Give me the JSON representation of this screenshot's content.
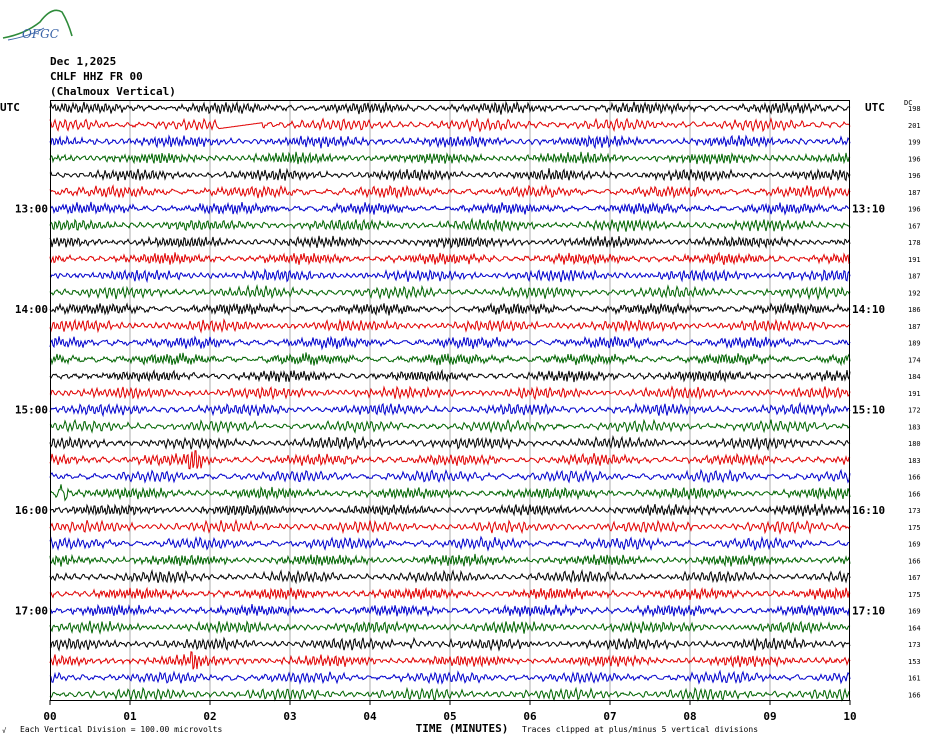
{
  "logo": {
    "text": "OFGC"
  },
  "header": {
    "date": "Dec 1,2025",
    "station": "CHLF HHZ FR 00",
    "location": "(Chalmoux Vertical)"
  },
  "footer": {
    "scale_note": "Each Vertical Division =  100.00 microvolts",
    "clip_note": "Traces clipped at plus/minus 5 vertical divisions",
    "corner_mark": "√"
  },
  "chart_data": {
    "type": "line",
    "title": "",
    "xlabel": "TIME (MINUTES)",
    "left_axis_title": "UTC",
    "right_axis_title": "UTC",
    "dc_label": "DC",
    "x_ticks": [
      "00",
      "01",
      "02",
      "03",
      "04",
      "05",
      "06",
      "07",
      "08",
      "09",
      "10"
    ],
    "xlim": [
      0,
      10
    ],
    "left_time_labels": [
      {
        "row": 6,
        "label": "13:00"
      },
      {
        "row": 12,
        "label": "14:00"
      },
      {
        "row": 18,
        "label": "15:00"
      },
      {
        "row": 24,
        "label": "16:00"
      },
      {
        "row": 30,
        "label": "17:00"
      }
    ],
    "right_time_labels": [
      {
        "row": 6,
        "label": "13:10"
      },
      {
        "row": 12,
        "label": "14:10"
      },
      {
        "row": 18,
        "label": "15:10"
      },
      {
        "row": 24,
        "label": "16:10"
      },
      {
        "row": 30,
        "label": "17:10"
      }
    ],
    "trace_colors": [
      "#000000",
      "#e00000",
      "#0000cc",
      "#006400"
    ],
    "dc_offsets": [
      198,
      201,
      199,
      196,
      196,
      187,
      196,
      167,
      178,
      191,
      187,
      192,
      186,
      187,
      189,
      174,
      184,
      191,
      172,
      183,
      180,
      183,
      166,
      166,
      173,
      175,
      169,
      166,
      167,
      175,
      169,
      164,
      173,
      153,
      161,
      166
    ],
    "events": [
      {
        "row": 1,
        "minute": 2.1,
        "kind": "gap"
      },
      {
        "row": 21,
        "minute": 1.8,
        "kind": "burst"
      },
      {
        "row": 23,
        "minute": 0.15,
        "kind": "burst"
      },
      {
        "row": 32,
        "minute": 4.55,
        "kind": "spike"
      },
      {
        "row": 33,
        "minute": 1.8,
        "kind": "spike"
      }
    ],
    "grid": true
  }
}
